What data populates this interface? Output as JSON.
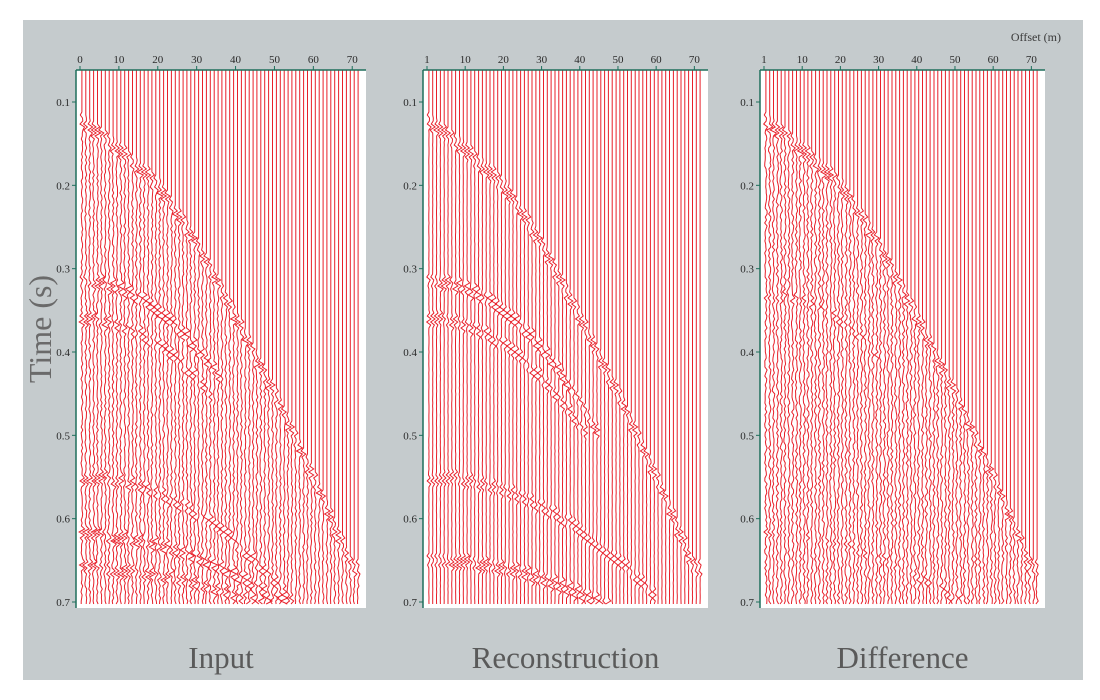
{
  "chart_data": [
    {
      "type": "seismic-wiggle",
      "title": "Input",
      "ylabel": "Time (s)",
      "xlabel": "",
      "x_ticks": [
        "0",
        "10",
        "20",
        "30",
        "40",
        "50",
        "60",
        "70"
      ],
      "y_ticks": [
        "0.1",
        "0.2",
        "0.3",
        "0.4",
        "0.5",
        "0.6",
        "0.7"
      ],
      "xlim": [
        0,
        72
      ],
      "ylim": [
        0.7,
        0.1
      ],
      "trace_count": 72,
      "trace_color": "#e8202a",
      "first_break": {
        "offset": [
          0,
          8,
          20,
          30,
          40,
          50,
          60,
          70
        ],
        "time": [
          0.12,
          0.15,
          0.2,
          0.27,
          0.36,
          0.45,
          0.55,
          0.66
        ]
      },
      "events": [
        {
          "t0": 0.315,
          "moveout": 9e-05,
          "x_max": 36,
          "strength": 1.0
        },
        {
          "t0": 0.36,
          "moveout": 8e-05,
          "x_max": 34,
          "strength": 0.8
        },
        {
          "t0": 0.55,
          "moveout": 5e-05,
          "x_max": 55,
          "strength": 0.8
        },
        {
          "t0": 0.62,
          "moveout": 3e-05,
          "x_max": 72,
          "strength": 1.0
        },
        {
          "t0": 0.66,
          "moveout": 2e-05,
          "x_max": 72,
          "strength": 0.9
        }
      ],
      "noise_level": 0.55
    },
    {
      "type": "seismic-wiggle",
      "title": "Reconstruction",
      "ylabel": "",
      "xlabel": "",
      "x_ticks": [
        "1",
        "10",
        "20",
        "30",
        "40",
        "50",
        "60",
        "70"
      ],
      "y_ticks": [
        "0.1",
        "0.2",
        "0.3",
        "0.4",
        "0.5",
        "0.6",
        "0.7"
      ],
      "xlim": [
        0,
        72
      ],
      "ylim": [
        0.7,
        0.1
      ],
      "trace_count": 72,
      "trace_color": "#e8202a",
      "first_break": {
        "offset": [
          0,
          8,
          20,
          30,
          40,
          50,
          60,
          70
        ],
        "time": [
          0.12,
          0.15,
          0.2,
          0.27,
          0.36,
          0.45,
          0.55,
          0.66
        ]
      },
      "events": [
        {
          "t0": 0.315,
          "moveout": 9e-05,
          "x_max": 45,
          "strength": 1.0
        },
        {
          "t0": 0.36,
          "moveout": 8e-05,
          "x_max": 42,
          "strength": 0.8
        },
        {
          "t0": 0.55,
          "moveout": 4e-05,
          "x_max": 60,
          "strength": 0.7
        },
        {
          "t0": 0.65,
          "moveout": 2.5e-05,
          "x_max": 72,
          "strength": 1.0
        }
      ],
      "noise_level": 0.08
    },
    {
      "type": "seismic-wiggle",
      "title": "Difference",
      "ylabel": "",
      "xlabel": "Offset (m)",
      "x_ticks": [
        "1",
        "10",
        "20",
        "30",
        "40",
        "50",
        "60",
        "70"
      ],
      "y_ticks": [
        "0.1",
        "0.2",
        "0.3",
        "0.4",
        "0.5",
        "0.6",
        "0.7"
      ],
      "xlim": [
        0,
        72
      ],
      "ylim": [
        0.7,
        0.1
      ],
      "trace_count": 72,
      "trace_color": "#e8202a",
      "first_break": {
        "offset": [
          0,
          8,
          20,
          30,
          40,
          50,
          60,
          70
        ],
        "time": [
          0.12,
          0.15,
          0.2,
          0.27,
          0.36,
          0.45,
          0.55,
          0.66
        ]
      },
      "events": [
        {
          "t0": 0.33,
          "moveout": 8e-05,
          "x_max": 30,
          "strength": 0.5
        },
        {
          "t0": 0.62,
          "moveout": 3e-05,
          "x_max": 55,
          "strength": 0.4
        }
      ],
      "noise_level": 0.75
    }
  ]
}
